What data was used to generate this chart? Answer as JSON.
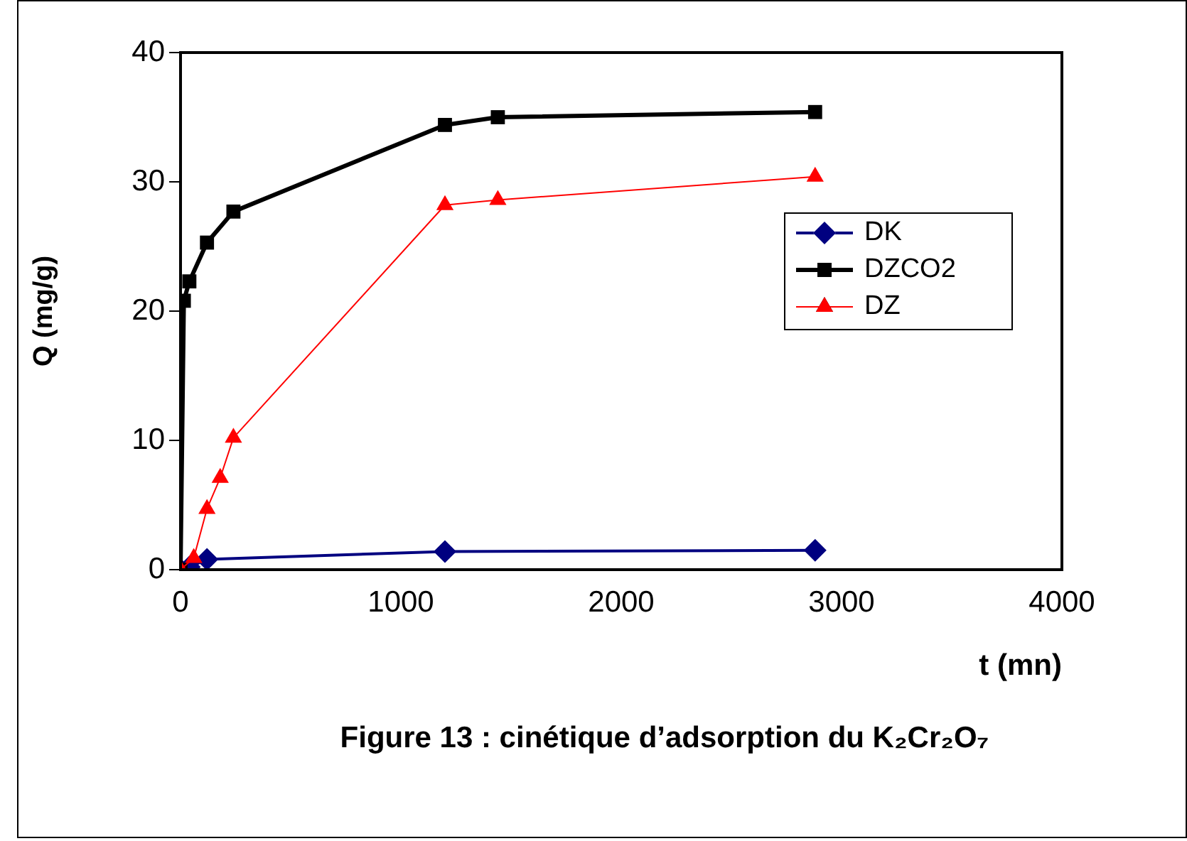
{
  "chart_data": {
    "type": "line",
    "title": "Figure 13 : cinétique d’adsorption du K₂Cr₂O₇",
    "xlabel": "t (mn)",
    "ylabel": "Q (mg/g)",
    "xlim": [
      0,
      4000
    ],
    "xticks": [
      0,
      1000,
      2000,
      3000,
      4000
    ],
    "ylim": [
      0,
      40
    ],
    "yticks": [
      0,
      10,
      20,
      30,
      40
    ],
    "grid": false,
    "legend": "right",
    "series": [
      {
        "name": "DK",
        "color": "#000080",
        "marker": "diamond",
        "x": [
          0,
          40,
          120,
          1200,
          2880
        ],
        "values": [
          0,
          0.2,
          0.8,
          1.4,
          1.5
        ]
      },
      {
        "name": "DZCO2",
        "color": "#000000",
        "marker": "square",
        "x": [
          0,
          15,
          40,
          120,
          240,
          1200,
          1440,
          2880
        ],
        "values": [
          0,
          20.8,
          22.3,
          25.3,
          27.7,
          34.4,
          35.0,
          35.4
        ]
      },
      {
        "name": "DZ",
        "color": "#ff0000",
        "marker": "triangle",
        "x": [
          0,
          60,
          120,
          180,
          240,
          1200,
          1440,
          2880
        ],
        "values": [
          0,
          0.9,
          4.7,
          7.1,
          10.2,
          28.2,
          28.6,
          30.4
        ]
      }
    ]
  }
}
